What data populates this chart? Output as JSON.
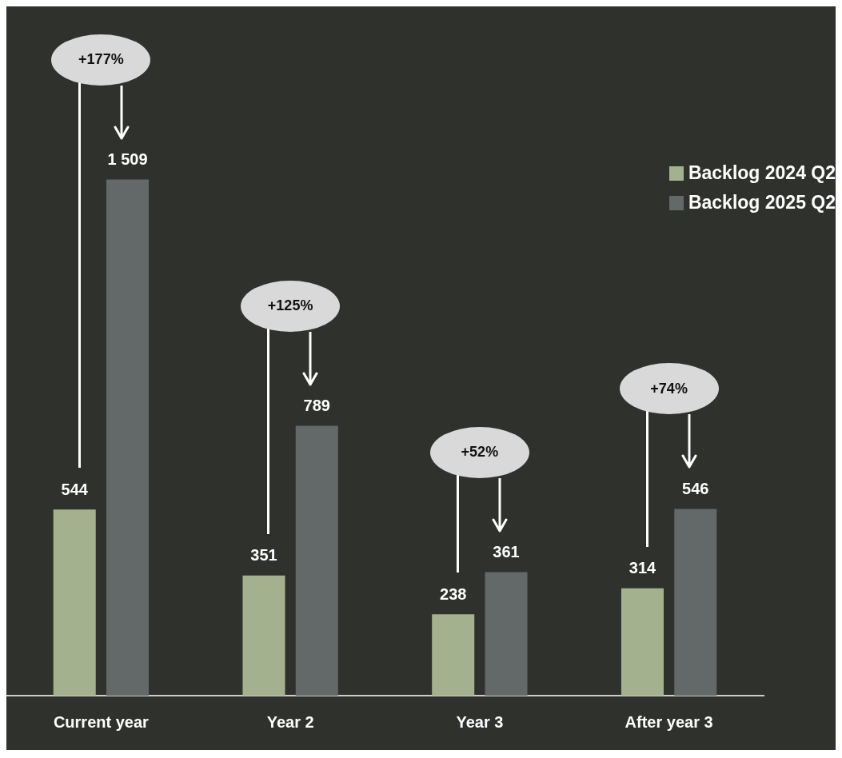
{
  "chart_data": {
    "type": "bar",
    "categories": [
      "Current year",
      "Year 2",
      "Year 3",
      "After year 3"
    ],
    "series": [
      {
        "name": "Backlog 2024 Q2",
        "color": "#a3b18f",
        "values": [
          544,
          351,
          238,
          314
        ],
        "value_labels": [
          "544",
          "351",
          "238",
          "314"
        ]
      },
      {
        "name": "Backlog 2025 Q2",
        "color": "#626968",
        "values": [
          1509,
          789,
          361,
          546
        ],
        "value_labels": [
          "1 509",
          "789",
          "361",
          "546"
        ]
      }
    ],
    "annotations": [
      "+177%",
      "+125%",
      "+52%",
      "+74%"
    ],
    "legend": "top right"
  }
}
